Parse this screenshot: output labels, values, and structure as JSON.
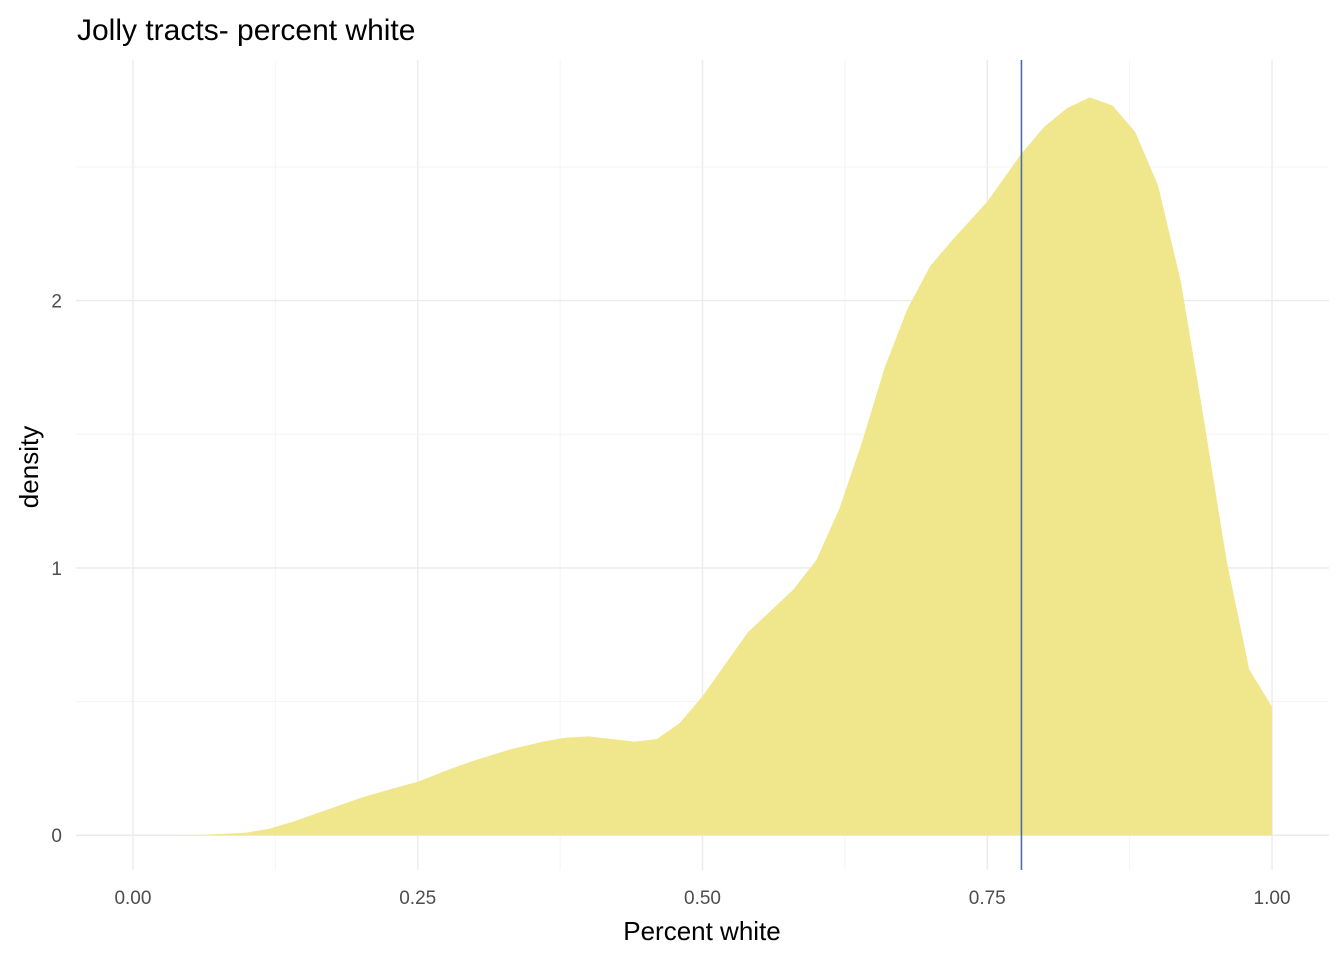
{
  "chart_data": {
    "type": "area",
    "title": "Jolly tracts- percent white",
    "xlabel": "Percent white",
    "ylabel": "density",
    "xlim": [
      -0.05,
      1.05
    ],
    "ylim": [
      -0.13,
      2.9
    ],
    "x_ticks": [
      0.0,
      0.25,
      0.5,
      0.75,
      1.0
    ],
    "x_tick_labels": [
      "0.00",
      "0.25",
      "0.50",
      "0.75",
      "1.00"
    ],
    "y_ticks": [
      0,
      1,
      2
    ],
    "y_tick_labels": [
      "0",
      "1",
      "2"
    ],
    "grid": true,
    "legend": "none",
    "fill_color": "#f0e68c",
    "reference_line": {
      "x": 0.78,
      "color": "#4a6fa5"
    },
    "series": [
      {
        "x": [
          0.04,
          0.06,
          0.08,
          0.1,
          0.12,
          0.14,
          0.16,
          0.18,
          0.2,
          0.22,
          0.25,
          0.28,
          0.3,
          0.33,
          0.36,
          0.38,
          0.4,
          0.42,
          0.44,
          0.46,
          0.48,
          0.5,
          0.52,
          0.54,
          0.56,
          0.58,
          0.6,
          0.62,
          0.64,
          0.66,
          0.68,
          0.7,
          0.72,
          0.75,
          0.78,
          0.8,
          0.82,
          0.84,
          0.86,
          0.88,
          0.9,
          0.92,
          0.94,
          0.96,
          0.98,
          1.0
        ],
        "y": [
          0.0,
          0.002,
          0.005,
          0.01,
          0.025,
          0.05,
          0.08,
          0.11,
          0.14,
          0.165,
          0.2,
          0.25,
          0.28,
          0.32,
          0.35,
          0.365,
          0.37,
          0.36,
          0.35,
          0.36,
          0.42,
          0.52,
          0.64,
          0.76,
          0.84,
          0.92,
          1.03,
          1.22,
          1.47,
          1.75,
          1.97,
          2.13,
          2.23,
          2.37,
          2.55,
          2.65,
          2.72,
          2.76,
          2.73,
          2.63,
          2.43,
          2.07,
          1.56,
          1.03,
          0.62,
          0.48
        ]
      }
    ]
  }
}
